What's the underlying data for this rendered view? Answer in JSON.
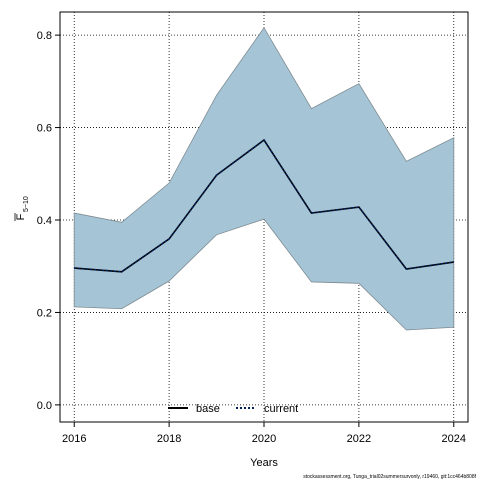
{
  "chart_data": {
    "type": "line",
    "xlabel": "Years",
    "ylabel": "F",
    "ylabel_sub": "5−10",
    "footer": "stockassessment.org, Tunga_trial02summersurvonly, r19460, git:1cc464b808f",
    "x": [
      2016,
      2017,
      2018,
      2019,
      2020,
      2021,
      2022,
      2023,
      2024
    ],
    "band": {
      "color": "#a5c4d5",
      "upper": [
        0.415,
        0.395,
        0.48,
        0.67,
        0.816,
        0.641,
        0.695,
        0.527,
        0.578
      ],
      "lower": [
        0.212,
        0.208,
        0.268,
        0.368,
        0.402,
        0.266,
        0.263,
        0.162,
        0.168
      ]
    },
    "series": [
      {
        "name": "base",
        "color": "#000000",
        "style": "solid",
        "values": [
          0.296,
          0.288,
          0.359,
          0.497,
          0.573,
          0.415,
          0.428,
          0.294,
          0.309
        ]
      },
      {
        "name": "current",
        "color": "#00205b",
        "style": "dotted",
        "values": [
          0.296,
          0.288,
          0.359,
          0.497,
          0.573,
          0.415,
          0.428,
          0.294,
          0.309
        ]
      }
    ],
    "xlim": [
      2015.7,
      2024.3
    ],
    "ylim": [
      -0.037,
      0.85
    ],
    "xticks": [
      2016,
      2018,
      2020,
      2022,
      2024
    ],
    "yticks": [
      {
        "value": 0,
        "label": "0.0"
      },
      0.2,
      0.4,
      0.6,
      0.8
    ],
    "grid": true,
    "legend": "bottom"
  }
}
